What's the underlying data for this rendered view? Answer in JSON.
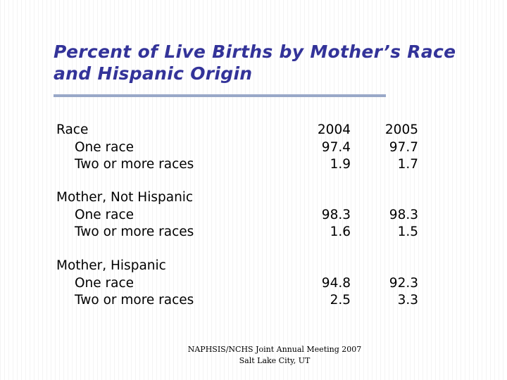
{
  "title": {
    "line1": "Percent of Live Births by Mother’s Race",
    "line2": "and Hispanic Origin"
  },
  "table": {
    "columns": [
      "2004",
      "2005"
    ],
    "sections": [
      {
        "heading": "Race",
        "heading_values": [
          "2004",
          "2005"
        ],
        "rows": [
          {
            "label": "One race",
            "v2004": "97.4",
            "v2005": "97.7"
          },
          {
            "label": "Two or more races",
            "v2004": "1.9",
            "v2005": "1.7"
          }
        ]
      },
      {
        "heading": "Mother, Not Hispanic",
        "rows": [
          {
            "label": "One race",
            "v2004": "98.3",
            "v2005": "98.3"
          },
          {
            "label": "Two or more races",
            "v2004": "1.6",
            "v2005": "1.5"
          }
        ]
      },
      {
        "heading": "Mother, Hispanic",
        "rows": [
          {
            "label": "One race",
            "v2004": "94.8",
            "v2005": "92.3"
          },
          {
            "label": "Two or more races",
            "v2004": "2.5",
            "v2005": "3.3"
          }
        ]
      }
    ]
  },
  "footer": {
    "line1": "NAPHSIS/NCHS Joint Annual Meeting 2007",
    "line2": "Salt Lake City, UT"
  },
  "colors": {
    "title": "#333399",
    "rule": "#99a8c8"
  }
}
